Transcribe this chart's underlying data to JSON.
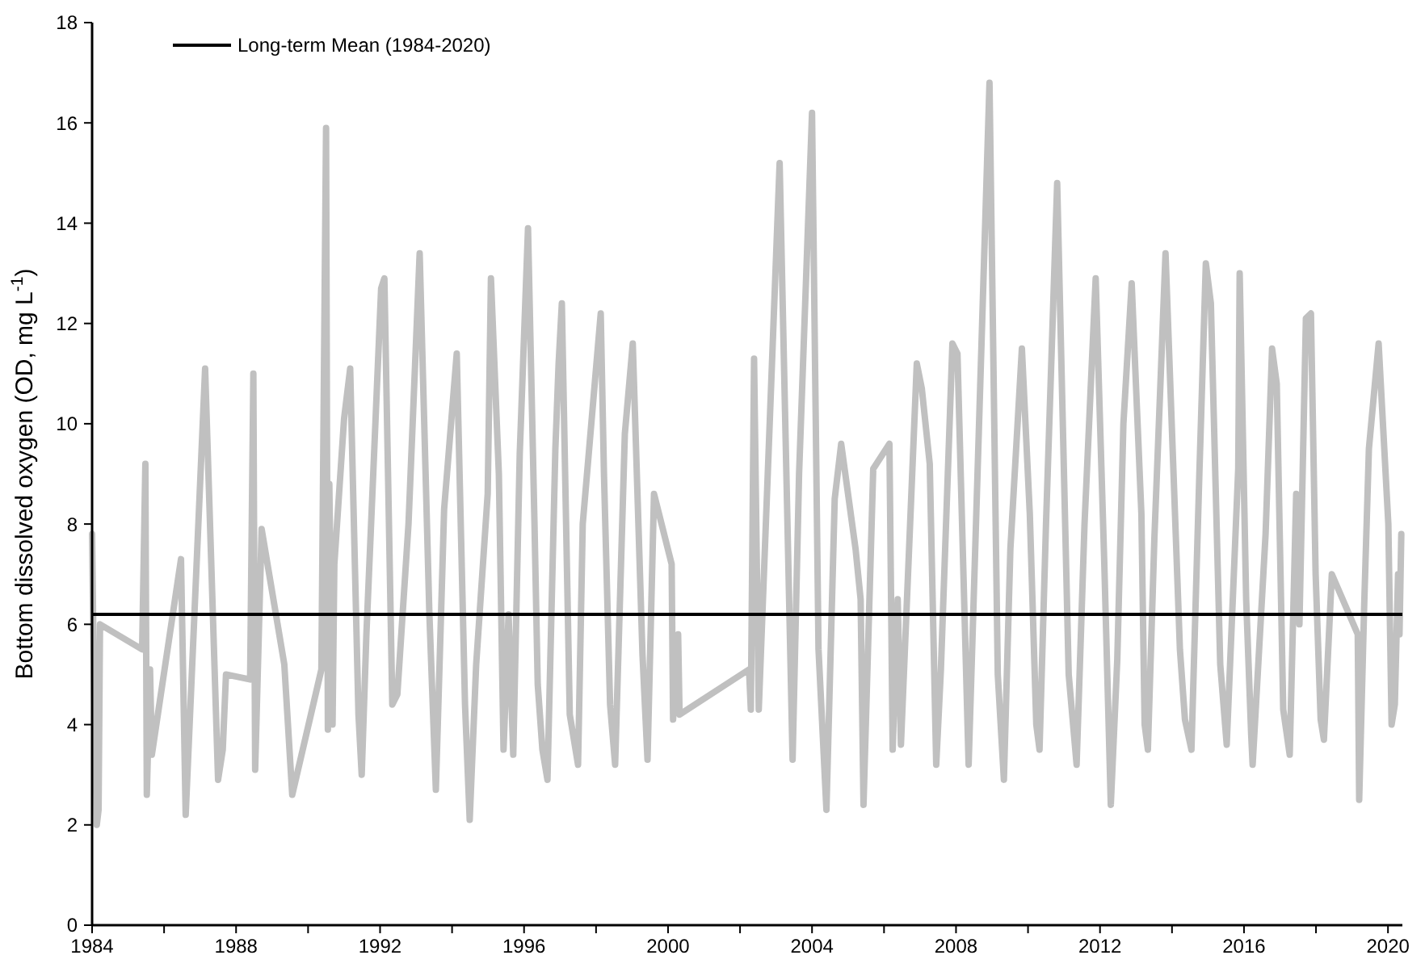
{
  "chart_data": {
    "type": "line",
    "ylabel": "Bottom dissolved oxygen (OD, mg L$^{-1}$)",
    "xlim": [
      1984,
      2020.4
    ],
    "xticks": [
      1984,
      {
        "value": 1986,
        "label": null
      },
      1988,
      {
        "value": 1990,
        "label": null
      },
      1992,
      {
        "value": 1994,
        "label": null
      },
      1996,
      {
        "value": 1998,
        "label": null
      },
      2000,
      {
        "value": 2002,
        "label": null
      },
      2004,
      {
        "value": 2006,
        "label": null
      },
      2008,
      {
        "value": 2010,
        "label": null
      },
      2012,
      {
        "value": 2014,
        "label": null
      },
      2016,
      {
        "value": 2018,
        "label": null
      },
      2020
    ],
    "ylim": [
      0,
      18
    ],
    "yticks": [
      0,
      2,
      4,
      6,
      8,
      10,
      12,
      14,
      16,
      18
    ],
    "grid": false,
    "legend": "top left",
    "marker": "none",
    "line_style": "solid",
    "ref_lines": [
      {
        "axis": "y",
        "value": 6.2,
        "label": "Long-term Mean (1984-2020)",
        "color": "#000000",
        "line_style": "solid"
      }
    ],
    "series": [
      {
        "color": "#c0c0c0",
        "x": [
          1984.0,
          1984.04,
          1984.13,
          1984.18,
          1984.22,
          1985.39,
          1985.48,
          1985.52,
          1985.61,
          1985.66,
          1986.47,
          1986.6,
          1987.14,
          1987.5,
          1987.63,
          1987.72,
          1988.39,
          1988.48,
          1988.53,
          1988.71,
          1989.34,
          1989.56,
          1990.37,
          1990.5,
          1990.55,
          1990.59,
          1990.68,
          1990.73,
          1991.0,
          1991.17,
          1991.4,
          1991.49,
          1991.62,
          1992.03,
          1992.12,
          1992.34,
          1992.48,
          1992.79,
          1993.1,
          1993.37,
          1993.55,
          1993.78,
          1994.13,
          1994.36,
          1994.49,
          1994.67,
          1994.99,
          1995.08,
          1995.3,
          1995.43,
          1995.57,
          1995.7,
          1995.88,
          1996.11,
          1996.29,
          1996.38,
          1996.51,
          1996.65,
          1996.87,
          1996.96,
          1997.05,
          1997.27,
          1997.5,
          1997.63,
          1998.13,
          1998.22,
          1998.39,
          1998.53,
          1998.8,
          1999.02,
          1999.29,
          1999.43,
          1999.61,
          2000.1,
          2000.14,
          2000.28,
          2000.32,
          2002.25,
          2002.3,
          2002.39,
          2002.52,
          2003.1,
          2003.46,
          2003.64,
          2004.0,
          2004.18,
          2004.4,
          2004.63,
          2004.81,
          2005.21,
          2005.35,
          2005.43,
          2005.7,
          2006.15,
          2006.24,
          2006.38,
          2006.47,
          2006.91,
          2007.05,
          2007.27,
          2007.45,
          2007.58,
          2007.9,
          2008.04,
          2008.35,
          2008.93,
          2009.16,
          2009.33,
          2009.51,
          2009.83,
          2010.05,
          2010.23,
          2010.32,
          2010.5,
          2010.81,
          2011.13,
          2011.35,
          2011.57,
          2011.88,
          2012.12,
          2012.3,
          2012.48,
          2012.65,
          2012.88,
          2013.15,
          2013.24,
          2013.33,
          2013.51,
          2013.82,
          2014.22,
          2014.36,
          2014.54,
          2014.76,
          2014.94,
          2015.08,
          2015.34,
          2015.52,
          2015.84,
          2015.88,
          2016.06,
          2016.2,
          2016.24,
          2016.6,
          2016.78,
          2016.91,
          2017.09,
          2017.27,
          2017.45,
          2017.54,
          2017.72,
          2017.86,
          2017.99,
          2018.13,
          2018.22,
          2018.44,
          2019.16,
          2019.2,
          2019.34,
          2019.47,
          2019.74,
          2020.01,
          2020.1,
          2020.19,
          2020.28,
          2020.32,
          2020.37
        ],
        "values": [
          7.8,
          5.4,
          2.0,
          2.3,
          6.0,
          5.5,
          9.2,
          2.6,
          5.1,
          3.4,
          7.3,
          2.2,
          11.1,
          2.9,
          3.5,
          5.0,
          4.9,
          11.0,
          3.1,
          7.9,
          5.2,
          2.6,
          5.1,
          15.9,
          3.9,
          8.8,
          4.0,
          7.2,
          10.1,
          11.1,
          4.2,
          3.0,
          5.8,
          12.7,
          12.9,
          4.4,
          4.6,
          8.0,
          13.4,
          6.2,
          2.7,
          8.3,
          11.4,
          4.4,
          2.1,
          5.2,
          8.6,
          12.9,
          9.0,
          3.5,
          6.2,
          3.4,
          9.4,
          13.9,
          8.0,
          4.8,
          3.5,
          2.9,
          9.5,
          11.2,
          12.4,
          4.2,
          3.2,
          8.0,
          12.2,
          9.0,
          4.4,
          3.2,
          9.8,
          11.6,
          5.4,
          3.3,
          8.6,
          7.2,
          4.1,
          5.8,
          4.2,
          5.1,
          4.3,
          11.3,
          4.3,
          15.2,
          3.3,
          9.0,
          16.2,
          5.5,
          2.3,
          8.5,
          9.6,
          7.5,
          6.5,
          2.4,
          9.1,
          9.6,
          3.5,
          6.5,
          3.6,
          11.2,
          10.7,
          9.2,
          3.2,
          5.1,
          11.6,
          11.4,
          3.2,
          16.8,
          5.0,
          2.9,
          7.5,
          11.5,
          8.2,
          4.0,
          3.5,
          8.0,
          14.8,
          5.0,
          3.2,
          8.0,
          12.9,
          7.2,
          2.4,
          5.3,
          10.0,
          12.8,
          8.2,
          4.0,
          3.5,
          7.7,
          13.4,
          5.5,
          4.1,
          3.5,
          9.0,
          13.2,
          12.4,
          5.2,
          3.6,
          9.1,
          13.0,
          6.5,
          3.8,
          3.2,
          7.8,
          11.5,
          10.8,
          4.3,
          3.4,
          8.6,
          6.0,
          12.1,
          12.2,
          7.0,
          4.1,
          3.7,
          7.0,
          5.8,
          2.5,
          6.4,
          9.5,
          11.6,
          8.0,
          4.0,
          4.4,
          7.0,
          5.8,
          7.8
        ]
      }
    ]
  }
}
